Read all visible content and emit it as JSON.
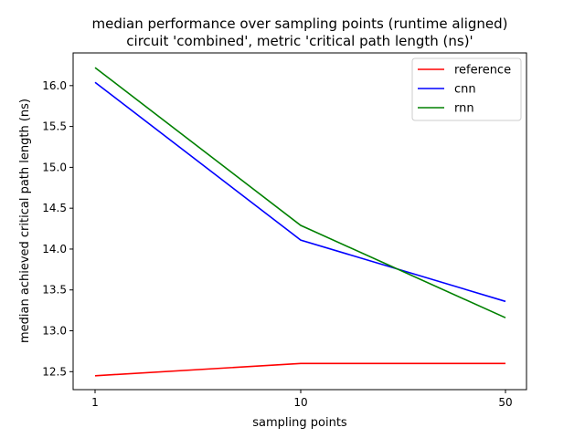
{
  "chart_data": {
    "type": "line",
    "title": "median performance over sampling points (runtime aligned)",
    "subtitle": "circuit 'combined', metric 'critical path length (ns)'",
    "xlabel": "sampling points",
    "ylabel": "median achieved critical path length (ns)",
    "x": [
      1,
      10,
      50
    ],
    "x_tick_labels": [
      "1",
      "10",
      "50"
    ],
    "y_ticks": [
      12.5,
      13.0,
      13.5,
      14.0,
      14.5,
      15.0,
      15.5,
      16.0
    ],
    "y_tick_labels": [
      "12.5",
      "13.0",
      "13.5",
      "14.0",
      "14.5",
      "15.0",
      "15.5",
      "16.0"
    ],
    "ylim": [
      12.28,
      16.4
    ],
    "grid": false,
    "legend_position": "top-right",
    "series": [
      {
        "name": "reference",
        "color": "#ff0000",
        "values": [
          12.45,
          12.6,
          12.6
        ]
      },
      {
        "name": "cnn",
        "color": "#0000ff",
        "values": [
          16.04,
          14.11,
          13.36
        ]
      },
      {
        "name": "rnn",
        "color": "#008000",
        "values": [
          16.22,
          14.29,
          13.16
        ]
      }
    ]
  }
}
